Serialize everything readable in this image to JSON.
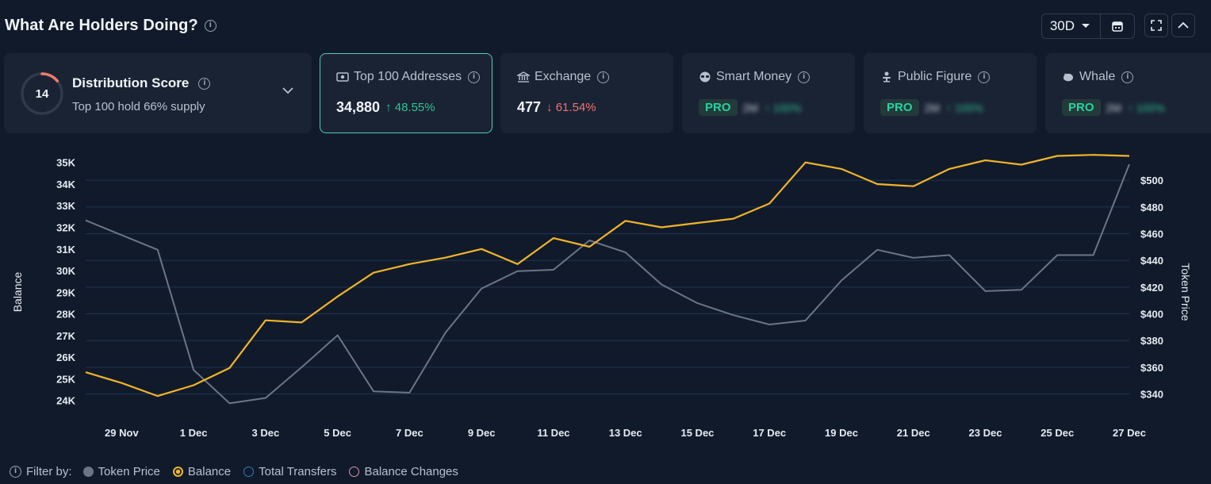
{
  "header": {
    "title": "What Are Holders Doing?"
  },
  "controls": {
    "period": "30D"
  },
  "cards": {
    "distribution": {
      "score": "14",
      "title": "Distribution Score",
      "subtitle": "Top 100 hold 66% supply"
    },
    "top100": {
      "label": "Top 100 Addresses",
      "value": "34,880",
      "change": "48.55%"
    },
    "exchange": {
      "label": "Exchange",
      "value": "477",
      "change": "61.54%"
    },
    "smart_money": {
      "label": "Smart Money",
      "badge": "PRO",
      "blur_value": "2M",
      "blur_change": "100%"
    },
    "public_figure": {
      "label": "Public Figure",
      "badge": "PRO",
      "blur_value": "2M",
      "blur_change": "100%"
    },
    "whale": {
      "label": "Whale",
      "badge": "PRO",
      "blur_value": "2M",
      "blur_change": "100%"
    }
  },
  "legend": {
    "filter_label": "Filter by:",
    "items": [
      "Token Price",
      "Balance",
      "Total Transfers",
      "Balance Changes"
    ]
  },
  "colors": {
    "balance": "#f0b429",
    "token_price": "#6b7585",
    "total_transfers": "#2d7fb5",
    "balance_changes": "#e18ea4",
    "accent": "#52cbb0"
  },
  "chart_data": {
    "type": "line",
    "x": [
      "28 Nov",
      "29 Nov",
      "30 Nov",
      "1 Dec",
      "2 Dec",
      "3 Dec",
      "4 Dec",
      "5 Dec",
      "6 Dec",
      "7 Dec",
      "8 Dec",
      "9 Dec",
      "10 Dec",
      "11 Dec",
      "12 Dec",
      "13 Dec",
      "14 Dec",
      "15 Dec",
      "16 Dec",
      "17 Dec",
      "18 Dec",
      "19 Dec",
      "20 Dec",
      "21 Dec",
      "22 Dec",
      "23 Dec",
      "24 Dec",
      "25 Dec",
      "26 Dec",
      "27 Dec"
    ],
    "x_tick_labels": [
      "29 Nov",
      "1 Dec",
      "3 Dec",
      "5 Dec",
      "7 Dec",
      "9 Dec",
      "11 Dec",
      "13 Dec",
      "15 Dec",
      "17 Dec",
      "19 Dec",
      "21 Dec",
      "23 Dec",
      "25 Dec",
      "27 Dec"
    ],
    "series": [
      {
        "name": "Balance",
        "axis": "left",
        "values": [
          25300,
          24800,
          24200,
          24700,
          25500,
          27700,
          27600,
          28800,
          29900,
          30300,
          30600,
          31000,
          30300,
          31500,
          31100,
          32300,
          32000,
          32200,
          32400,
          33100,
          35000,
          34700,
          34000,
          33900,
          34700,
          35100,
          34900,
          35300,
          35350,
          35300
        ]
      },
      {
        "name": "Token Price",
        "axis": "right",
        "values": [
          470,
          459,
          448,
          358,
          333,
          337,
          360,
          384,
          342,
          341,
          386,
          419,
          432,
          433,
          455,
          446,
          422,
          408,
          399,
          392,
          395,
          425,
          448,
          442,
          444,
          417,
          418,
          444,
          444,
          512
        ]
      }
    ],
    "ylabel": "Balance",
    "y2label": "Token Price",
    "yticks": [
      "24K",
      "25K",
      "26K",
      "27K",
      "28K",
      "29K",
      "30K",
      "31K",
      "32K",
      "33K",
      "34K",
      "35K"
    ],
    "y2ticks": [
      "$340",
      "$360",
      "$380",
      "$400",
      "$420",
      "$440",
      "$460",
      "$480",
      "$500"
    ],
    "ylim": [
      23800,
      35100
    ],
    "y2lim": [
      332,
      515
    ],
    "grid": true
  }
}
